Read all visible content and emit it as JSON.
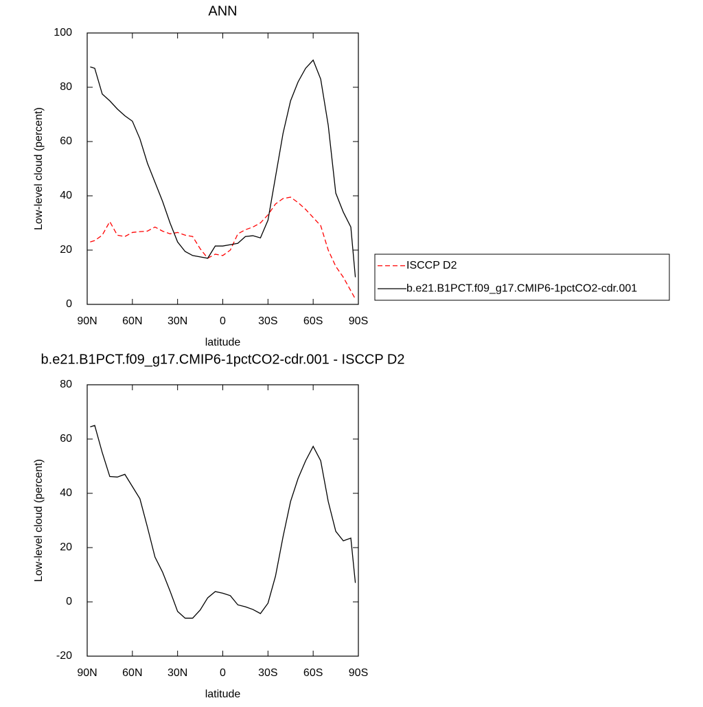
{
  "chart_data": [
    {
      "type": "line",
      "title": "ANN",
      "xlabel": "latitude",
      "ylabel": "Low-level cloud (percent)",
      "x": [
        88,
        85,
        80,
        75,
        70,
        65,
        60,
        55,
        50,
        45,
        40,
        35,
        30,
        25,
        20,
        15,
        10,
        5,
        0,
        -5,
        -10,
        -15,
        -20,
        -25,
        -30,
        -35,
        -40,
        -45,
        -50,
        -55,
        -60,
        -65,
        -70,
        -75,
        -80,
        -85,
        -88
      ],
      "series": [
        {
          "name": "ISCCP D2",
          "color": "#ff0000",
          "dashed": true,
          "values": [
            23,
            23.5,
            25.5,
            30.5,
            25.5,
            25,
            26.5,
            26.8,
            27,
            28.5,
            27,
            26,
            26.5,
            25.5,
            25,
            20.5,
            17,
            18.5,
            18,
            20,
            26,
            27.5,
            28.5,
            30,
            33,
            37,
            39,
            39.5,
            37.5,
            35,
            32,
            29,
            20,
            14,
            10,
            5,
            2
          ]
        },
        {
          "name": "b.e21.B1PCT.f09_g17.CMIP6-1pctCO2-cdr.001",
          "color": "#000000",
          "dashed": false,
          "values": [
            87.5,
            87,
            77.5,
            75,
            72,
            69.5,
            67.5,
            61,
            52,
            45,
            38,
            30,
            23,
            19.5,
            18,
            17.5,
            17,
            21.5,
            21.5,
            22,
            22.5,
            25,
            25.3,
            24.5,
            31,
            47,
            63,
            75,
            82,
            87,
            90,
            83,
            66,
            41,
            34,
            28.5,
            10
          ]
        }
      ],
      "xlim": [
        90,
        -90
      ],
      "xticks": [
        {
          "value": 90,
          "label": "90N"
        },
        {
          "value": 60,
          "label": "60N"
        },
        {
          "value": 30,
          "label": "30N"
        },
        0,
        {
          "value": -30,
          "label": "30S"
        },
        {
          "value": -60,
          "label": "60S"
        },
        {
          "value": -90,
          "label": "90S"
        }
      ],
      "ylim": [
        0,
        100
      ],
      "yticks": [
        0,
        20,
        40,
        60,
        80,
        100
      ],
      "legend": "right"
    },
    {
      "type": "line",
      "title": "b.e21.B1PCT.f09_g17.CMIP6-1pctCO2-cdr.001 - ISCCP D2",
      "xlabel": "latitude",
      "ylabel": "Low-level cloud (percent)",
      "x": [
        88,
        85,
        80,
        75,
        70,
        65,
        60,
        55,
        50,
        45,
        40,
        35,
        30,
        25,
        20,
        15,
        10,
        5,
        0,
        -5,
        -10,
        -15,
        -20,
        -25,
        -30,
        -35,
        -40,
        -45,
        -50,
        -55,
        -60,
        -65,
        -70,
        -75,
        -80,
        -85,
        -88
      ],
      "series": [
        {
          "color": "#000000",
          "dashed": false,
          "values": [
            64.5,
            65,
            55,
            46.2,
            46,
            47,
            42.5,
            38,
            27.5,
            16.5,
            11,
            4,
            -3.5,
            -6,
            -6,
            -3,
            1.5,
            3.8,
            3.2,
            2.3,
            -1.1,
            -1.8,
            -2.8,
            -4.3,
            -0.5,
            9.5,
            24,
            37,
            45.5,
            52,
            57.3,
            52,
            37,
            26,
            22.5,
            23.5,
            7
          ]
        }
      ],
      "xlim": [
        90,
        -90
      ],
      "xticks": [
        {
          "value": 90,
          "label": "90N"
        },
        {
          "value": 60,
          "label": "60N"
        },
        {
          "value": 30,
          "label": "30N"
        },
        0,
        {
          "value": -30,
          "label": "30S"
        },
        {
          "value": -60,
          "label": "60S"
        },
        {
          "value": -90,
          "label": "90S"
        }
      ],
      "ylim": [
        -20,
        80
      ],
      "yticks": [
        -20,
        0,
        20,
        40,
        60,
        80
      ]
    }
  ]
}
